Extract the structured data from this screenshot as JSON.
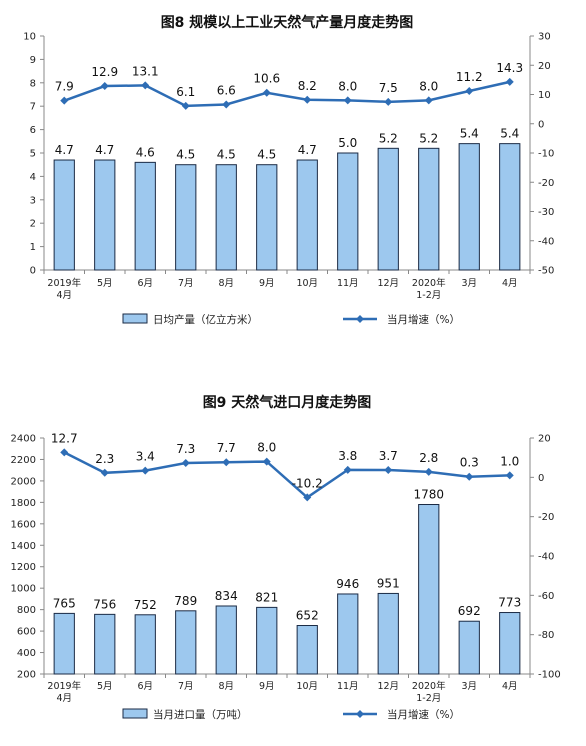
{
  "chart_data": [
    {
      "type": "bar",
      "title": "图8  规模以上工业天然气产量月度走势图",
      "categories": [
        [
          "2019年",
          "4月"
        ],
        [
          "5月"
        ],
        [
          "6月"
        ],
        [
          "7月"
        ],
        [
          "8月"
        ],
        [
          "9月"
        ],
        [
          "10月"
        ],
        [
          "11月"
        ],
        [
          "12月"
        ],
        [
          "2020年",
          "1-2月"
        ],
        [
          "3月"
        ],
        [
          "4月"
        ]
      ],
      "series": [
        {
          "name": "日均产量（亿立方米）",
          "type": "bar",
          "axis": "left",
          "values": [
            4.7,
            4.7,
            4.6,
            4.5,
            4.5,
            4.5,
            4.7,
            5.0,
            5.2,
            5.2,
            5.4,
            5.4
          ],
          "labels": [
            "4.7",
            "4.7",
            "4.6",
            "4.5",
            "4.5",
            "4.5",
            "4.7",
            "5.0",
            "5.2",
            "5.2",
            "5.4",
            "5.4"
          ]
        },
        {
          "name": "当月增速（%）",
          "type": "line",
          "axis": "right",
          "values": [
            7.9,
            12.9,
            13.1,
            6.1,
            6.6,
            10.6,
            8.2,
            8.0,
            7.5,
            8.0,
            11.2,
            14.3
          ],
          "labels": [
            "7.9",
            "12.9",
            "13.1",
            "6.1",
            "6.6",
            "10.6",
            "8.2",
            "8.0",
            "7.5",
            "8.0",
            "11.2",
            "14.3"
          ]
        }
      ],
      "ylim_left": [
        0,
        10
      ],
      "yticks_left": [
        "0",
        "1",
        "2",
        "3",
        "4",
        "5",
        "6",
        "7",
        "8",
        "9",
        "10"
      ],
      "ylim_right": [
        -50,
        30
      ],
      "yticks_right": [
        "-50",
        "-40",
        "-30",
        "-20",
        "-10",
        "0",
        "10",
        "20",
        "30"
      ],
      "grid": false,
      "legend": "bottom",
      "colors": {
        "bar_fill": "#9dc8ee",
        "bar_stroke": "#1a2a44",
        "line": "#2e6db5"
      }
    },
    {
      "type": "bar",
      "title": "图9  天然气进口月度走势图",
      "categories": [
        [
          "2019年",
          "4月"
        ],
        [
          "5月"
        ],
        [
          "6月"
        ],
        [
          "7月"
        ],
        [
          "8月"
        ],
        [
          "9月"
        ],
        [
          "10月"
        ],
        [
          "11月"
        ],
        [
          "12月"
        ],
        [
          "2020年",
          "1-2月"
        ],
        [
          "3月"
        ],
        [
          "4月"
        ]
      ],
      "series": [
        {
          "name": "当月进口量（万吨）",
          "type": "bar",
          "axis": "left",
          "values": [
            765,
            756,
            752,
            789,
            834,
            821,
            652,
            946,
            951,
            1780,
            692,
            773
          ],
          "labels": [
            "765",
            "756",
            "752",
            "789",
            "834",
            "821",
            "652",
            "946",
            "951",
            "1780",
            "692",
            "773"
          ]
        },
        {
          "name": "当月增速（%）",
          "type": "line",
          "axis": "right",
          "values": [
            12.7,
            2.3,
            3.4,
            7.3,
            7.7,
            8.0,
            -10.2,
            3.8,
            3.7,
            2.8,
            0.3,
            1.0
          ],
          "labels": [
            "12.7",
            "2.3",
            "3.4",
            "7.3",
            "7.7",
            "8.0",
            "-10.2",
            "3.8",
            "3.7",
            "2.8",
            "0.3",
            "1.0"
          ]
        }
      ],
      "ylim_left": [
        200,
        2400
      ],
      "yticks_left": [
        "200",
        "400",
        "600",
        "800",
        "1000",
        "1200",
        "1400",
        "1600",
        "1800",
        "2000",
        "2200",
        "2400"
      ],
      "ylim_right": [
        -100,
        20
      ],
      "yticks_right": [
        "-100",
        "-80",
        "-60",
        "-40",
        "-20",
        "0",
        "20"
      ],
      "grid": false,
      "legend": "bottom",
      "colors": {
        "bar_fill": "#9dc8ee",
        "bar_stroke": "#1a2a44",
        "line": "#2e6db5"
      }
    }
  ]
}
